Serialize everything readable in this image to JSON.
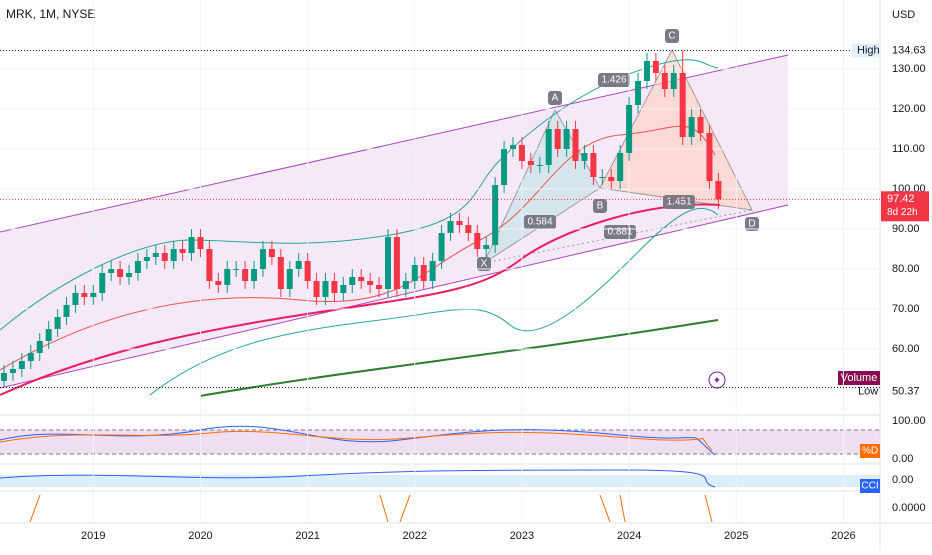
{
  "chart_data": {
    "type": "candlestick",
    "title": "MRK, 1M, NYSE",
    "currency": "USD",
    "up_color": "#089981",
    "down_color": "#f23645",
    "x": [
      "2018-03",
      "2018-04",
      "2018-05",
      "2018-06",
      "2018-07",
      "2018-08",
      "2018-09",
      "2018-10",
      "2018-11",
      "2018-12",
      "2019-01",
      "2019-02",
      "2019-03",
      "2019-04",
      "2019-05",
      "2019-06",
      "2019-07",
      "2019-08",
      "2019-09",
      "2019-10",
      "2019-11",
      "2019-12",
      "2020-01",
      "2020-02",
      "2020-03",
      "2020-04",
      "2020-05",
      "2020-06",
      "2020-07",
      "2020-08",
      "2020-09",
      "2020-10",
      "2020-11",
      "2020-12",
      "2021-01",
      "2021-02",
      "2021-03",
      "2021-04",
      "2021-05",
      "2021-06",
      "2021-07",
      "2021-08",
      "2021-09",
      "2021-10",
      "2021-11",
      "2021-12",
      "2022-01",
      "2022-02",
      "2022-03",
      "2022-04",
      "2022-05",
      "2022-06",
      "2022-07",
      "2022-08",
      "2022-09",
      "2022-10",
      "2022-11",
      "2022-12",
      "2023-01",
      "2023-02",
      "2023-03",
      "2023-04",
      "2023-05",
      "2023-06",
      "2023-07",
      "2023-08",
      "2023-09",
      "2023-10",
      "2023-11",
      "2023-12",
      "2024-01",
      "2024-02",
      "2024-03",
      "2024-04",
      "2024-05",
      "2024-06",
      "2024-07",
      "2024-08",
      "2024-09",
      "2024-10",
      "2024-11"
    ],
    "open": [
      52,
      54,
      55,
      57,
      59,
      62,
      65,
      68,
      71,
      74,
      73,
      74,
      79,
      80,
      78,
      79,
      82,
      83,
      84,
      82,
      85,
      84,
      88,
      85,
      77,
      76,
      80,
      80,
      77,
      80,
      85,
      83,
      75,
      80,
      82,
      77,
      73,
      77,
      74,
      76,
      78,
      77,
      76,
      75,
      88,
      75,
      77,
      81,
      77,
      82,
      89,
      92,
      91,
      89,
      85,
      86,
      101,
      110,
      111,
      107,
      106,
      106,
      115,
      110,
      115,
      107,
      109,
      103,
      103,
      102,
      109,
      121,
      127,
      132,
      129,
      125,
      129,
      113,
      118,
      114,
      102
    ],
    "high": [
      56,
      57,
      59,
      61,
      64,
      67,
      70,
      73,
      76,
      76,
      76,
      81,
      82,
      82,
      81,
      84,
      85,
      86,
      86,
      87,
      87,
      90,
      90,
      87,
      79,
      82,
      82,
      82,
      82,
      87,
      87,
      85,
      82,
      84,
      84,
      79,
      79,
      79,
      78,
      80,
      80,
      79,
      78,
      90,
      90,
      79,
      83,
      83,
      84,
      91,
      94,
      94,
      93,
      91,
      88,
      103,
      112,
      113,
      113,
      109,
      108,
      117,
      117,
      117,
      117,
      111,
      111,
      105,
      105,
      111,
      123,
      129,
      134,
      134,
      131,
      131,
      134.63,
      120,
      120,
      116,
      104
    ],
    "low": [
      50.37,
      52,
      53,
      55,
      57,
      60,
      63,
      66,
      69,
      71,
      71,
      72,
      77,
      76,
      76,
      77,
      80,
      81,
      80,
      80,
      82,
      82,
      83,
      75,
      74,
      74,
      78,
      75,
      75,
      78,
      81,
      73,
      73,
      78,
      75,
      71,
      71,
      72,
      72,
      74,
      75,
      74,
      73,
      73,
      73,
      73,
      75,
      75,
      75,
      80,
      87,
      89,
      87,
      83,
      83,
      84,
      99,
      108,
      105,
      104,
      104,
      104,
      108,
      108,
      105,
      105,
      101,
      101,
      100,
      100,
      107,
      119,
      125,
      127,
      123,
      123,
      111,
      111,
      112,
      100,
      95
    ],
    "close": [
      54,
      55,
      57,
      59,
      62,
      65,
      68,
      71,
      74,
      73,
      74,
      79,
      80,
      78,
      79,
      82,
      83,
      84,
      82,
      85,
      84,
      88,
      85,
      77,
      76,
      80,
      80,
      77,
      80,
      85,
      83,
      75,
      80,
      82,
      77,
      73,
      77,
      74,
      76,
      78,
      77,
      76,
      75,
      88,
      75,
      77,
      81,
      77,
      82,
      89,
      92,
      91,
      89,
      85,
      86,
      101,
      110,
      111,
      107,
      106,
      106,
      115,
      110,
      115,
      107,
      109,
      103,
      103,
      102,
      109,
      121,
      127,
      132,
      129,
      125,
      129,
      113,
      118,
      114,
      102,
      97.42
    ],
    "ylim": [
      43.5,
      147.25
    ],
    "yticks": [
      {
        "value": 60,
        "label": "60.00"
      },
      {
        "value": 70,
        "label": "70.00"
      },
      {
        "value": 80,
        "label": "80.00"
      },
      {
        "value": 90,
        "label": "90.00"
      },
      {
        "value": 100,
        "label": "100.00"
      },
      {
        "value": 110,
        "label": "110.00"
      },
      {
        "value": 120,
        "label": "120.00"
      },
      {
        "value": 130,
        "label": "130.00"
      }
    ],
    "xticks": [
      {
        "value": "2019-01",
        "label": "2019"
      },
      {
        "value": "2020-01",
        "label": "2020"
      },
      {
        "value": "2021-01",
        "label": "2021"
      },
      {
        "value": "2022-01",
        "label": "2022"
      },
      {
        "value": "2023-01",
        "label": "2023"
      },
      {
        "value": "2024-01",
        "label": "2024"
      },
      {
        "value": "2025-01",
        "label": "2025"
      },
      {
        "value": "2026-01",
        "label": "2026"
      }
    ],
    "high_marker": {
      "label": "High",
      "value": 134.63
    },
    "low_marker": {
      "label": "Low",
      "value": 50.37
    },
    "last_price": {
      "value": 97.42,
      "countdown": "8d 22h"
    },
    "volume_label": "Volume",
    "pattern": {
      "points": [
        "X",
        "A",
        "B",
        "C",
        "D"
      ],
      "ratios": [
        "0.584",
        "1.426",
        "1.451",
        "0.881"
      ]
    },
    "panes": [
      {
        "labels": [
          "100.00",
          "0.00"
        ],
        "tag": "%D"
      },
      {
        "labels": [
          "0.00"
        ],
        "tag": "CCI"
      },
      {
        "labels": [
          "0.0000"
        ]
      }
    ]
  }
}
